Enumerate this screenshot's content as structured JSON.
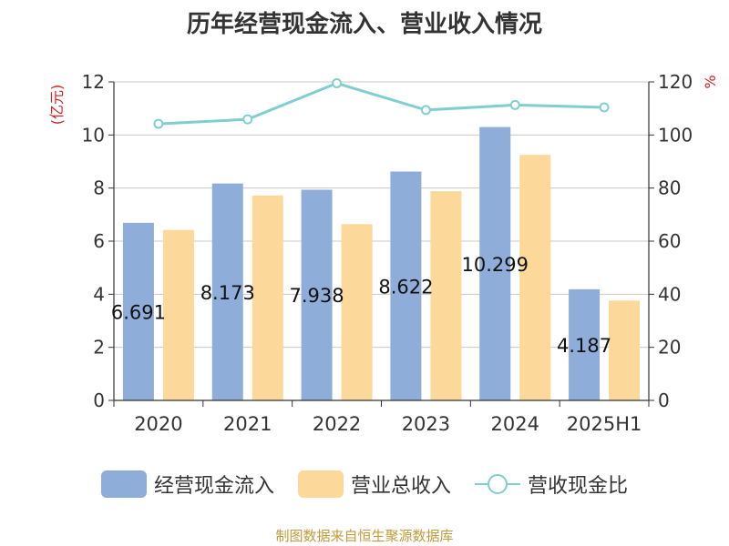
{
  "chart_data": {
    "type": "bar",
    "title": "历年经营现金流入、营业收入情况",
    "categories": [
      "2020",
      "2021",
      "2022",
      "2023",
      "2024",
      "2025H1"
    ],
    "series": [
      {
        "name": "经营现金流入",
        "type": "bar",
        "values": [
          6.691,
          8.173,
          7.938,
          8.622,
          10.299,
          4.187
        ],
        "color": "#8eadd9"
      },
      {
        "name": "营业总收入",
        "type": "bar",
        "values": [
          6.42,
          7.72,
          6.64,
          7.88,
          9.25,
          3.76
        ],
        "color": "#fcd89a"
      },
      {
        "name": "营收现金比",
        "type": "line",
        "axis": "right",
        "values": [
          104.2,
          105.9,
          119.5,
          109.4,
          111.3,
          110.4
        ],
        "color": "#80cfd0"
      }
    ],
    "data_labels": [
      "6.691",
      "8.173",
      "7.938",
      "8.622",
      "10.299",
      "4.187"
    ],
    "left_axis": {
      "unit": "(亿元)",
      "ylim": [
        0,
        12
      ],
      "ticks": [
        "0",
        "2",
        "4",
        "6",
        "8",
        "10",
        "12"
      ]
    },
    "right_axis": {
      "unit": "%",
      "ylim": [
        0,
        120
      ],
      "ticks": [
        "0",
        "20",
        "40",
        "60",
        "80",
        "100",
        "120"
      ]
    },
    "grid": true,
    "legend_position": "bottom"
  },
  "source": "制图数据来自恒生聚源数据库"
}
